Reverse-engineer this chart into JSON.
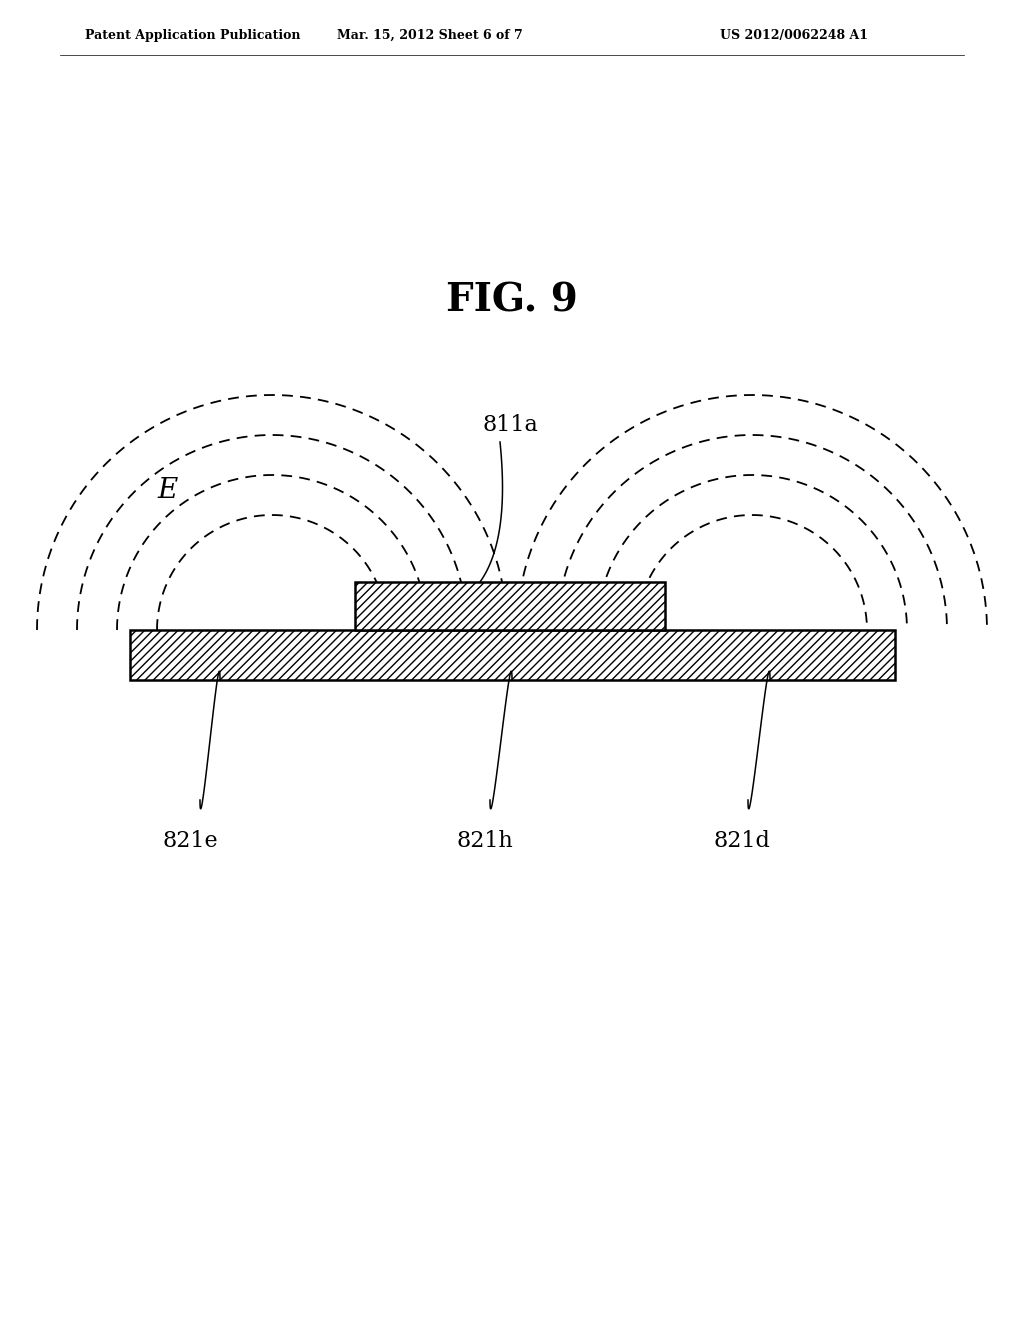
{
  "title": "FIG. 9",
  "header_left": "Patent Application Publication",
  "header_center": "Mar. 15, 2012 Sheet 6 of 7",
  "header_right": "US 2012/0062248 A1",
  "background_color": "#ffffff",
  "label_811a": "811a",
  "label_E": "E",
  "label_821e": "821e",
  "label_821h": "821h",
  "label_821d": "821d",
  "fig_width": 10.24,
  "fig_height": 13.2,
  "dpi": 100
}
